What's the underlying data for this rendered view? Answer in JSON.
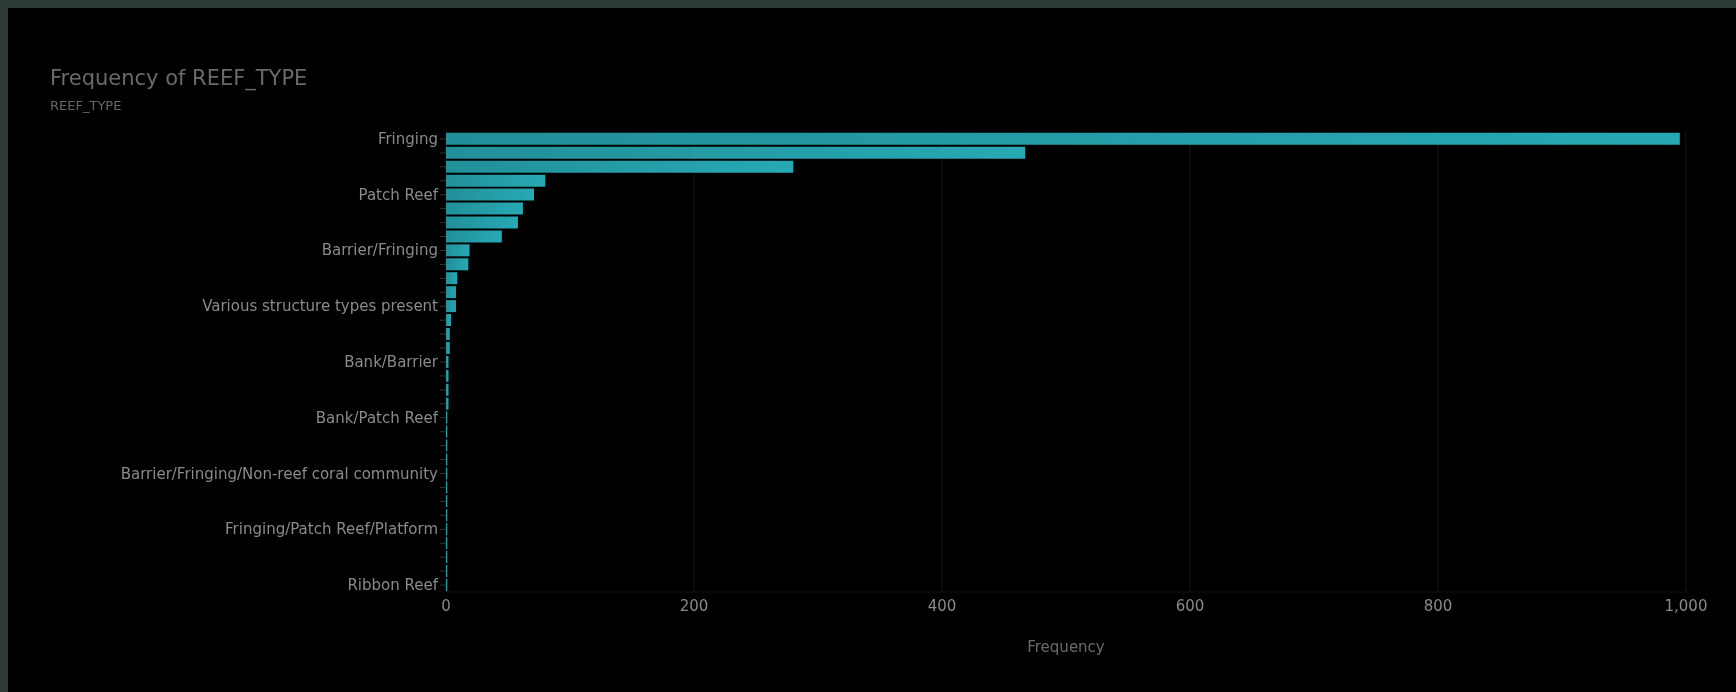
{
  "chart_data": {
    "type": "bar",
    "orientation": "horizontal",
    "title": "Frequency of REEF_TYPE",
    "ylabel": "REEF_TYPE",
    "xlabel": "Frequency",
    "categories": [
      "Fringing",
      null,
      null,
      null,
      "Patch Reef",
      null,
      null,
      null,
      "Barrier/Fringing",
      null,
      null,
      null,
      "Various structure types present",
      null,
      null,
      null,
      "Bank/Barrier",
      null,
      null,
      null,
      "Bank/Patch Reef",
      null,
      null,
      null,
      "Barrier/Fringing/Non-reef coral community",
      null,
      null,
      null,
      "Fringing/Patch Reef/Platform",
      null,
      null,
      null,
      "Ribbon Reef"
    ],
    "values": [
      995,
      467,
      280,
      80,
      71,
      62,
      58,
      45,
      19,
      18,
      9,
      8,
      8,
      4,
      3,
      3,
      2,
      2,
      2,
      2,
      1,
      1,
      1,
      1,
      1,
      1,
      1,
      1,
      1,
      1,
      1,
      1,
      1
    ],
    "color": "#27a9b4",
    "xlim": [
      0,
      1000
    ],
    "xticks": [
      0,
      200,
      400,
      600,
      800,
      {
        "value": 1000,
        "label": "1,000"
      }
    ],
    "grid": "x"
  }
}
